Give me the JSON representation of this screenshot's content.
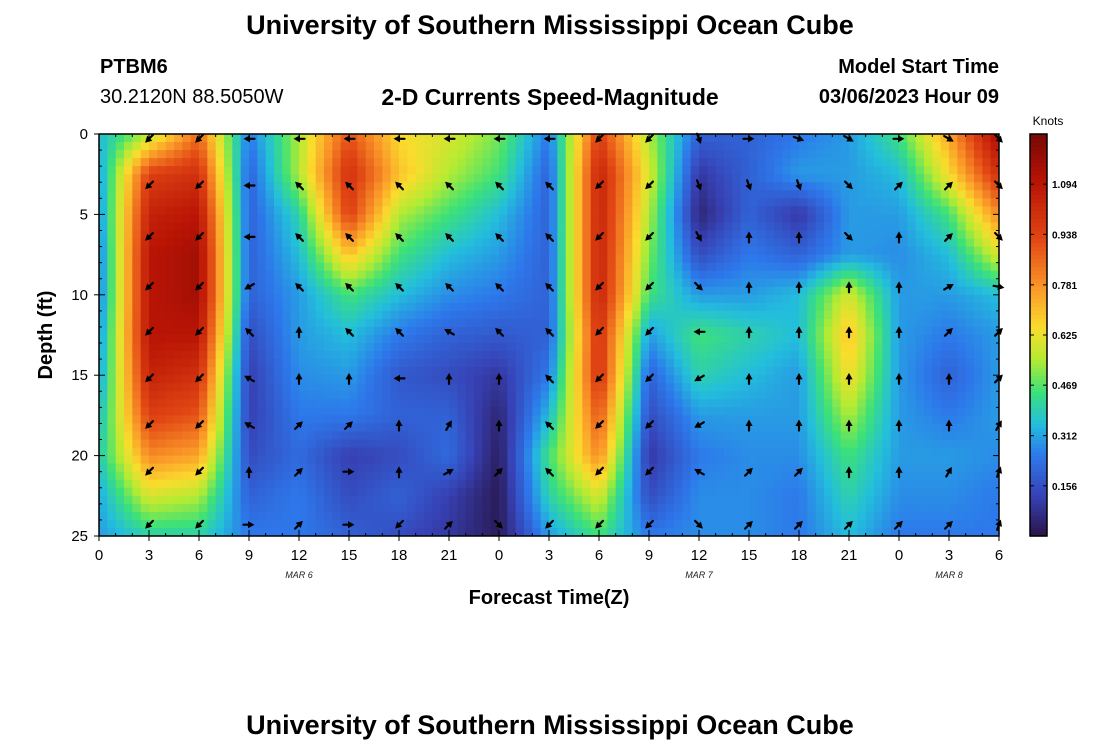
{
  "page": {
    "title": "University of Southern Mississippi Ocean Cube",
    "footer_title": "University of Southern Mississippi Ocean Cube"
  },
  "station": {
    "id": "PTBM6",
    "coords": "30.2120N  88.5050W"
  },
  "model": {
    "label": "Model Start Time",
    "start": "03/06/2023 Hour 09"
  },
  "colors": {
    "arrow": "#000000",
    "frame": "#000000"
  },
  "chart_data": {
    "type": "heatmap",
    "title": "2-D Currents Speed-Magnitude",
    "xlabel": "Forecast Time(Z)",
    "ylabel": "Depth (ft)",
    "xlim": [
      0,
      54
    ],
    "ylim": [
      0,
      25
    ],
    "x_ticks": [
      0,
      3,
      6,
      9,
      12,
      15,
      18,
      21,
      24,
      27,
      30,
      33,
      36,
      39,
      42,
      45,
      48,
      51,
      54
    ],
    "x_tick_labels": [
      "0",
      "3",
      "6",
      "9",
      "12",
      "15",
      "18",
      "21",
      "0",
      "3",
      "6",
      "9",
      "12",
      "15",
      "18",
      "21",
      "0",
      "3",
      "6"
    ],
    "y_ticks": [
      0,
      5,
      10,
      15,
      20,
      25
    ],
    "y_tick_labels": [
      "0",
      "5",
      "10",
      "15",
      "20",
      "25"
    ],
    "date_labels": [
      {
        "hour": 12,
        "text": "MAR 6"
      },
      {
        "hour": 36,
        "text": "MAR 7"
      },
      {
        "hour": 51,
        "text": "MAR 8"
      }
    ],
    "colorbar": {
      "label": "Knots",
      "min": 0.0,
      "max": 1.25,
      "ticks": [
        0.156,
        0.312,
        0.469,
        0.625,
        0.781,
        0.938,
        1.094
      ],
      "tick_labels": [
        "0.156",
        "0.312",
        "0.469",
        "0.625",
        "0.781",
        "0.938",
        "1.094"
      ]
    },
    "speed_knots": {
      "depths_ft": [
        0,
        2.5,
        5,
        7.5,
        10,
        12.5,
        15,
        17.5,
        20,
        22.5,
        25
      ],
      "hours": [
        0,
        3,
        6,
        9,
        12,
        15,
        18,
        21,
        24,
        27,
        30,
        33,
        36,
        39,
        42,
        45,
        48,
        51,
        54
      ],
      "values": [
        [
          0.35,
          0.55,
          0.85,
          0.25,
          0.55,
          0.9,
          0.65,
          0.6,
          0.5,
          0.25,
          0.95,
          0.55,
          0.2,
          0.2,
          0.25,
          0.3,
          0.45,
          0.75,
          1.15
        ],
        [
          0.3,
          0.95,
          1.0,
          0.2,
          0.55,
          1.0,
          0.7,
          0.55,
          0.45,
          0.2,
          1.05,
          0.6,
          0.1,
          0.2,
          0.3,
          0.3,
          0.35,
          0.65,
          1.0
        ],
        [
          0.28,
          1.05,
          1.1,
          0.2,
          0.4,
          0.95,
          0.55,
          0.45,
          0.35,
          0.2,
          1.05,
          0.55,
          0.05,
          0.2,
          0.1,
          0.3,
          0.3,
          0.45,
          0.8
        ],
        [
          0.25,
          1.1,
          1.15,
          0.2,
          0.35,
          0.7,
          0.45,
          0.35,
          0.3,
          0.2,
          1.05,
          0.5,
          0.15,
          0.25,
          0.2,
          0.3,
          0.28,
          0.35,
          0.6
        ],
        [
          0.25,
          1.1,
          1.15,
          0.2,
          0.3,
          0.45,
          0.35,
          0.28,
          0.25,
          0.2,
          1.05,
          0.45,
          0.3,
          0.3,
          0.35,
          0.6,
          0.3,
          0.3,
          0.35
        ],
        [
          0.28,
          1.1,
          1.1,
          0.15,
          0.3,
          0.35,
          0.25,
          0.2,
          0.18,
          0.2,
          1.0,
          0.3,
          0.45,
          0.4,
          0.35,
          0.7,
          0.3,
          0.25,
          0.3
        ],
        [
          0.3,
          1.05,
          1.0,
          0.12,
          0.28,
          0.3,
          0.18,
          0.15,
          0.1,
          0.25,
          1.0,
          0.2,
          0.4,
          0.35,
          0.3,
          0.65,
          0.3,
          0.2,
          0.3
        ],
        [
          0.35,
          0.95,
          0.9,
          0.12,
          0.25,
          0.25,
          0.2,
          0.2,
          0.05,
          0.35,
          0.9,
          0.15,
          0.3,
          0.3,
          0.3,
          0.55,
          0.3,
          0.25,
          0.3
        ],
        [
          0.38,
          0.8,
          0.75,
          0.15,
          0.22,
          0.12,
          0.15,
          0.22,
          0.03,
          0.45,
          0.8,
          0.1,
          0.25,
          0.28,
          0.28,
          0.45,
          0.3,
          0.3,
          0.28
        ],
        [
          0.32,
          0.6,
          0.55,
          0.2,
          0.25,
          0.15,
          0.2,
          0.12,
          0.02,
          0.4,
          0.6,
          0.15,
          0.28,
          0.28,
          0.25,
          0.4,
          0.28,
          0.28,
          0.25
        ],
        [
          0.3,
          0.4,
          0.4,
          0.25,
          0.25,
          0.2,
          0.15,
          0.1,
          0.02,
          0.3,
          0.45,
          0.25,
          0.28,
          0.28,
          0.25,
          0.35,
          0.25,
          0.25,
          0.25
        ]
      ]
    },
    "vectors": {
      "hours": [
        3,
        6,
        9,
        12,
        15,
        18,
        21,
        24,
        27,
        30,
        33,
        36,
        39,
        42,
        45,
        48,
        51,
        54
      ],
      "depths_ft": [
        0.3,
        3.2,
        6.4,
        9.5,
        12.3,
        15.2,
        18.1,
        21.0,
        24.3
      ],
      "directions_deg": [
        [
          225,
          225,
          270,
          270,
          270,
          270,
          270,
          270,
          270,
          225,
          225,
          160,
          90,
          110,
          120,
          90,
          120,
          135
        ],
        [
          225,
          225,
          270,
          315,
          315,
          315,
          315,
          315,
          315,
          225,
          225,
          160,
          160,
          160,
          135,
          45,
          45,
          135
        ],
        [
          225,
          225,
          270,
          315,
          315,
          315,
          315,
          315,
          315,
          225,
          225,
          150,
          0,
          0,
          135,
          0,
          45,
          135
        ],
        [
          225,
          225,
          240,
          315,
          315,
          315,
          315,
          315,
          315,
          225,
          225,
          135,
          0,
          0,
          0,
          0,
          60,
          100
        ],
        [
          225,
          225,
          315,
          0,
          315,
          315,
          300,
          315,
          315,
          225,
          225,
          270,
          0,
          0,
          0,
          0,
          45,
          45
        ],
        [
          225,
          225,
          300,
          0,
          0,
          270,
          0,
          0,
          315,
          225,
          225,
          240,
          0,
          0,
          0,
          0,
          0,
          45
        ],
        [
          225,
          225,
          300,
          45,
          45,
          0,
          30,
          0,
          315,
          225,
          225,
          240,
          0,
          0,
          0,
          0,
          0,
          30
        ],
        [
          225,
          225,
          0,
          45,
          90,
          0,
          60,
          45,
          315,
          225,
          225,
          300,
          45,
          45,
          0,
          0,
          30,
          20
        ],
        [
          225,
          225,
          90,
          45,
          90,
          225,
          45,
          135,
          225,
          225,
          225,
          135,
          45,
          45,
          45,
          45,
          45,
          20
        ]
      ]
    }
  }
}
